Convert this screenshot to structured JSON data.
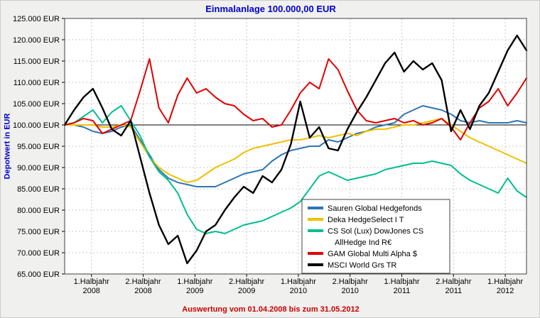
{
  "window": {
    "bg": "#f0f0ee"
  },
  "chart_data": {
    "type": "line",
    "title": "Einmalanlage 100.000,00 EUR",
    "title_color": "#0000cc",
    "ylabel": "Depotwert in EUR",
    "ylabel_color": "#0000cc",
    "footer": "Auswertung vom 01.04.2008 bis zum 31.05.2012",
    "footer_color": "#cc0000",
    "y_unit": "EUR",
    "ylim": [
      65000,
      125000
    ],
    "ytick_step": 5000,
    "baseline": 100000,
    "x_start": "2008-04",
    "x_end": "2012-05",
    "grid": {
      "color": "#c8c8c8",
      "dash": "2,3",
      "on": true
    },
    "plot_bg": "#ffffff",
    "legend_position": "bottom-right",
    "xtick_labels": [
      [
        "1.Halbjahr",
        "2008"
      ],
      [
        "2.Halbjahr",
        "2008"
      ],
      [
        "1.Halbjahr",
        "2009"
      ],
      [
        "2.Halbjahr",
        "2009"
      ],
      [
        "1.Halbjahr",
        "2010"
      ],
      [
        "2.Halbjahr",
        "2010"
      ],
      [
        "1.Halbjahr",
        "2011"
      ],
      [
        "2.Halbjahr",
        "2011"
      ],
      [
        "1.Halbjahr",
        "2012"
      ]
    ],
    "series": [
      {
        "name": "Sauren Global Hedgefonds",
        "legend_lines": [
          "Sauren Global Hedgefonds"
        ],
        "color": "#2e75b6",
        "width": 2,
        "values": [
          100000,
          100000,
          99500,
          98500,
          98000,
          98500,
          99500,
          100000,
          96500,
          93000,
          89500,
          87500,
          86500,
          86000,
          85500,
          85500,
          85500,
          86500,
          87500,
          88500,
          89000,
          89500,
          91500,
          93000,
          94000,
          94500,
          95000,
          95000,
          96500,
          96000,
          97000,
          98000,
          98500,
          99500,
          100000,
          100500,
          102500,
          103500,
          104500,
          104000,
          103500,
          102500,
          101000,
          100500,
          101000,
          100500,
          100500,
          100500,
          101000,
          100500
        ]
      },
      {
        "name": "Deka HedgeSelect I T",
        "legend_lines": [
          "Deka HedgeSelect I T"
        ],
        "color": "#f0c000",
        "width": 2,
        "values": [
          100000,
          100000,
          100000,
          100000,
          99500,
          99500,
          100000,
          99500,
          96000,
          92500,
          90000,
          88500,
          87500,
          86500,
          87000,
          88500,
          90000,
          91000,
          92000,
          93500,
          94500,
          95000,
          95500,
          96000,
          96500,
          96500,
          97000,
          97500,
          97000,
          97500,
          98000,
          97500,
          98500,
          99000,
          99000,
          99500,
          100000,
          100000,
          100500,
          101000,
          101500,
          100000,
          98500,
          97000,
          96000,
          95000,
          94000,
          93000,
          92000,
          91000
        ]
      },
      {
        "name": "CS Sol (Lux) DowJones CS AllHedge Ind R€",
        "legend_lines": [
          "CS Sol (Lux) DowJones CS",
          "AllHedge Ind R€"
        ],
        "color": "#00bf90",
        "width": 2,
        "values": [
          100000,
          100500,
          102000,
          103500,
          100500,
          103000,
          104500,
          101000,
          97500,
          92500,
          89000,
          87000,
          84000,
          79000,
          75500,
          74500,
          75000,
          74500,
          75500,
          76500,
          77000,
          77500,
          78500,
          79500,
          80500,
          82000,
          85000,
          88000,
          89000,
          88000,
          87000,
          87500,
          88000,
          88500,
          89500,
          90000,
          90500,
          91000,
          91000,
          91500,
          91000,
          90500,
          88500,
          87000,
          86000,
          85000,
          84000,
          87500,
          84500,
          83000
        ]
      },
      {
        "name": "GAM Global Multi Alpha $",
        "legend_lines": [
          "GAM Global Multi Alpha $"
        ],
        "color": "#e00000",
        "width": 2,
        "values": [
          100000,
          100500,
          101500,
          101000,
          98000,
          99000,
          100000,
          101000,
          108000,
          115500,
          104000,
          100500,
          107000,
          111000,
          107500,
          108500,
          106500,
          105000,
          104500,
          102500,
          101000,
          101500,
          99500,
          100000,
          103500,
          107500,
          110000,
          108500,
          115500,
          113000,
          108000,
          103500,
          101000,
          100500,
          101000,
          101500,
          100500,
          101000,
          100000,
          100500,
          101500,
          99500,
          96500,
          100500,
          104000,
          105500,
          108500,
          104500,
          107500,
          111000
        ]
      },
      {
        "name": "MSCI World Grs TR",
        "legend_lines": [
          "MSCI World Grs TR"
        ],
        "color": "#000000",
        "width": 2.4,
        "values": [
          100000,
          103500,
          106500,
          108500,
          104000,
          99000,
          97500,
          101000,
          92500,
          84000,
          76500,
          72000,
          74000,
          67500,
          70500,
          75000,
          76500,
          80000,
          83000,
          85500,
          84000,
          88000,
          86500,
          89500,
          95500,
          105500,
          97000,
          99500,
          94500,
          94000,
          99000,
          103000,
          106500,
          110500,
          114500,
          117000,
          112500,
          115000,
          113000,
          114500,
          110500,
          98500,
          103500,
          99000,
          104500,
          107500,
          112500,
          117500,
          121000,
          117500
        ]
      }
    ]
  }
}
